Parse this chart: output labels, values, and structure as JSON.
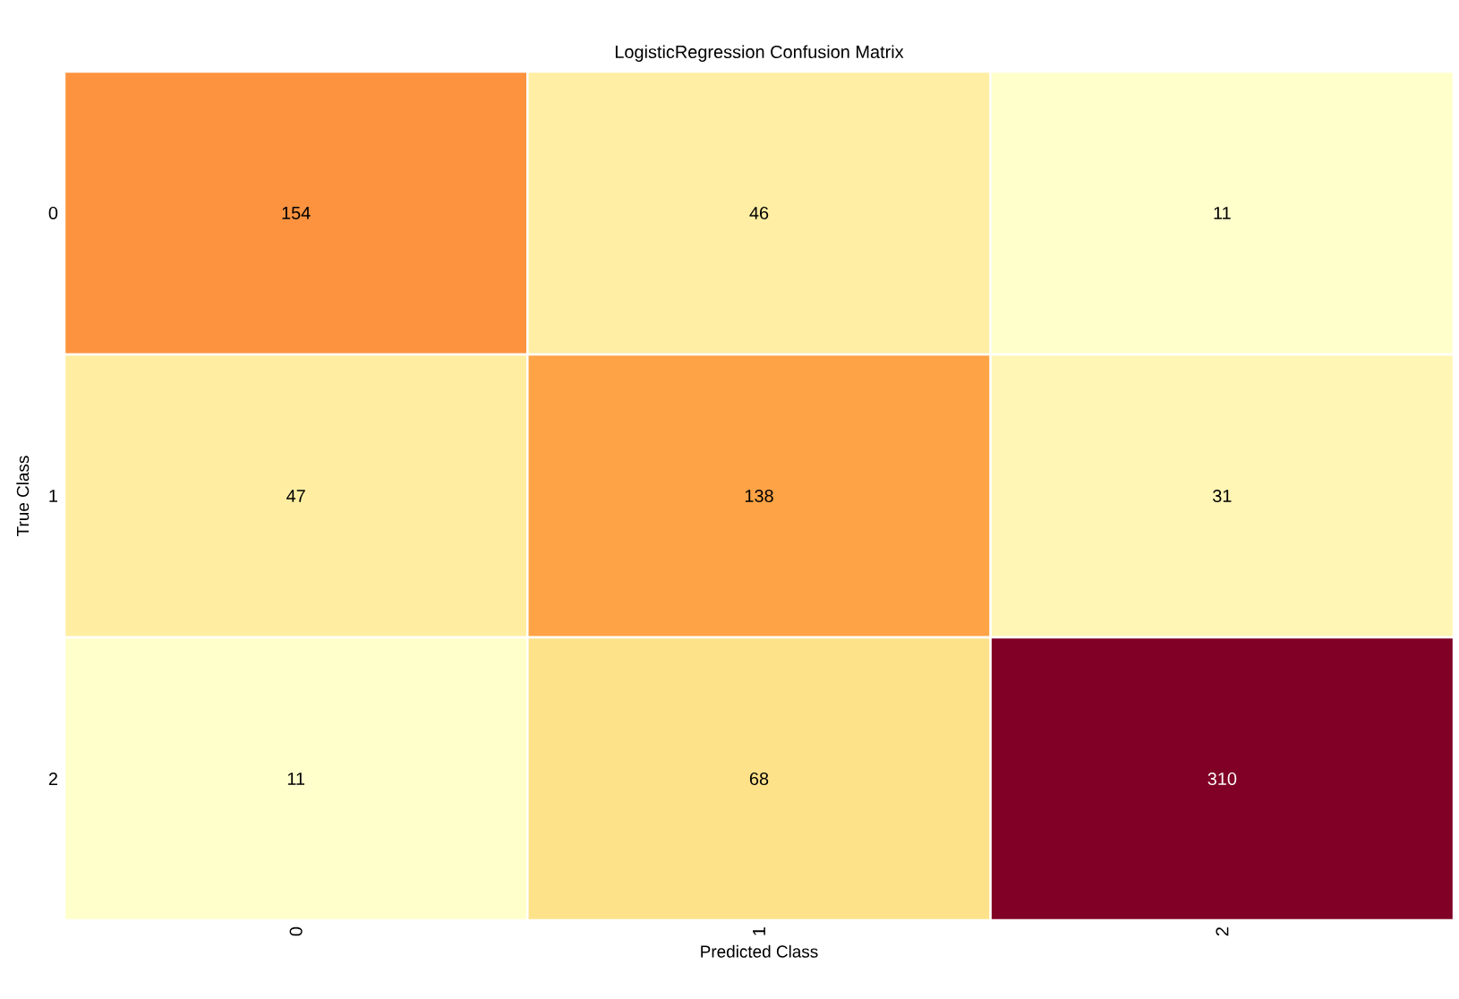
{
  "chart_data": {
    "type": "heatmap",
    "title": "LogisticRegression Confusion Matrix",
    "xlabel": "Predicted Class",
    "ylabel": "True Class",
    "categories": [
      "0",
      "1",
      "2"
    ],
    "y_categories": [
      "0",
      "1",
      "2"
    ],
    "cells": [
      [
        154,
        46,
        11
      ],
      [
        47,
        138,
        31
      ],
      [
        11,
        68,
        310
      ]
    ],
    "data_labels": true
  }
}
